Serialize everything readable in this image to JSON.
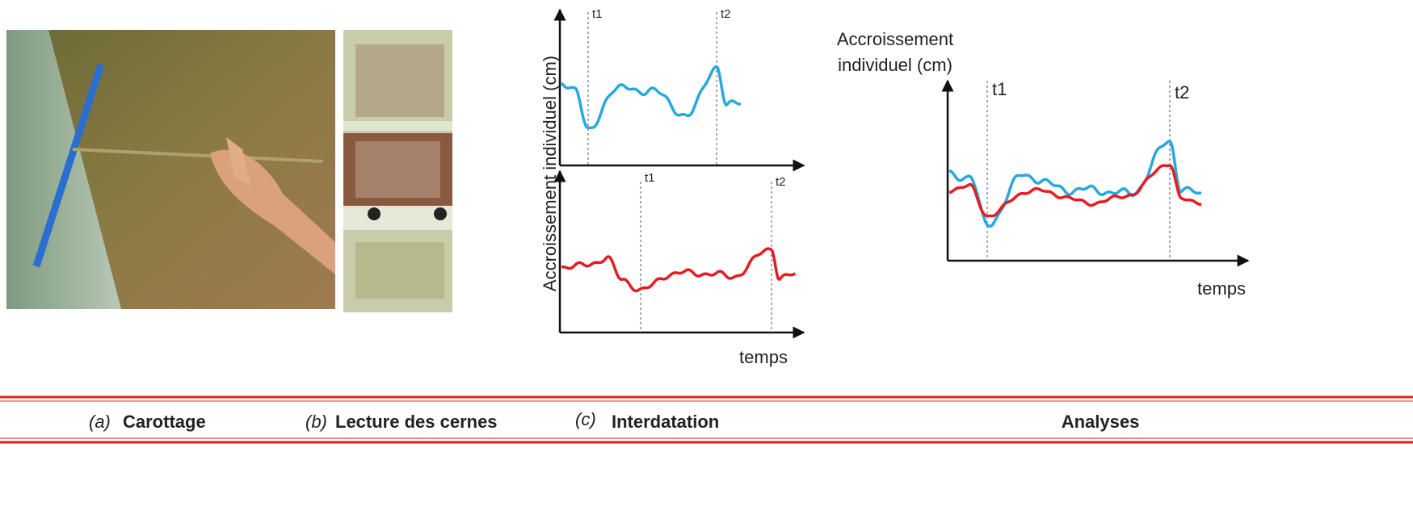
{
  "panels": {
    "a": {
      "letter": "(a)",
      "title": "Carottage"
    },
    "b": {
      "letter": "(b)",
      "title": "Lecture des cernes"
    },
    "c": {
      "letter": "(c)",
      "title": "Interdatation",
      "y_label": "Accroissement individuel (cm)",
      "x_label": "temps",
      "top_markers": [
        "t1",
        "t2"
      ],
      "bottom_markers": [
        "t1",
        "t2"
      ]
    },
    "d": {
      "title": "Analyses",
      "y_label": [
        "Accroissement",
        "individuel (cm)"
      ],
      "x_label": "temps",
      "markers": [
        "t1",
        "t2"
      ]
    }
  }
}
